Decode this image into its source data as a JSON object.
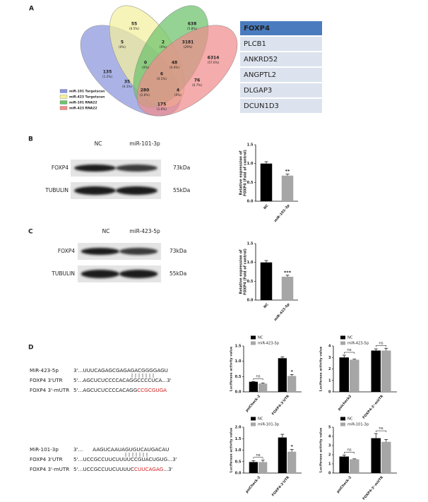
{
  "panel_labels": [
    "A",
    "B",
    "C",
    "D"
  ],
  "venn": {
    "sets": [
      {
        "name": "miR-101 Targetscan",
        "color": "#8a96dc"
      },
      {
        "name": "miR-423 Targetscan",
        "color": "#f3f09c"
      },
      {
        "name": "miR-101 RNA22",
        "color": "#6cc26c"
      },
      {
        "name": "miR-423 RNA22",
        "color": "#f08c8c"
      }
    ],
    "regions": [
      {
        "count": 135,
        "percent": "(1.2%)"
      },
      {
        "count": 55,
        "percent": "(0.5%)"
      },
      {
        "count": 638,
        "percent": "(5.8%)"
      },
      {
        "count": 6314,
        "percent": "(57.6%)"
      },
      {
        "count": 5,
        "percent": "(0%)"
      },
      {
        "count": 2,
        "percent": "(0%)"
      },
      {
        "count": 3181,
        "percent": "(29%)"
      },
      {
        "count": 0,
        "percent": "(0%)"
      },
      {
        "count": 48,
        "percent": "(0.4%)"
      },
      {
        "count": 35,
        "percent": "(0.3%)"
      },
      {
        "count": 6,
        "percent": "(0.1%)"
      },
      {
        "count": 76,
        "percent": "(0.7%)"
      },
      {
        "count": 280,
        "percent": "(2.6%)"
      },
      {
        "count": 4,
        "percent": "(0%)"
      },
      {
        "count": 175,
        "percent": "(1.6%)"
      }
    ]
  },
  "gene_table": {
    "header": "FOXP4",
    "rows": [
      "PLCB1",
      "ANKRD52",
      "ANGPTL2",
      "DLGAP3",
      "DCUN1D3"
    ]
  },
  "blots": [
    {
      "lanes": [
        "NC",
        "miR-101-3p"
      ],
      "rows": [
        {
          "name": "FOXP4",
          "size": "73kDa"
        },
        {
          "name": "TUBULIN",
          "size": "55kDa"
        }
      ]
    },
    {
      "lanes": [
        "NC",
        "miR-423-5p"
      ],
      "rows": [
        {
          "name": "FOXP4",
          "size": "73kDa"
        },
        {
          "name": "TUBULIN",
          "size": "55kDa"
        }
      ]
    }
  ],
  "sequences": [
    {
      "rows": [
        {
          "name": "MiR-423-5p",
          "parts": [
            {
              "text": "3'...UUUCAGAGCGAGAGACGGGGAGU"
            }
          ]
        },
        {
          "name": "FOXP4 3'UTR",
          "parts": [
            {
              "text": "5'...AGCUCUCCCCACAGGCCCCUCA...3'"
            }
          ]
        },
        {
          "name": "FOXP4 3'-mUTR",
          "parts": [
            {
              "text": "5'...AGCUCUCCCCACAGG"
            },
            {
              "text": "CCGCGUGA",
              "color": "#d62020"
            }
          ]
        }
      ]
    },
    {
      "rows": [
        {
          "name": "MiR-101-3p",
          "parts": [
            {
              "text": "3'...      AAGUCAAUAGUGUCAUGACAU"
            }
          ]
        },
        {
          "name": "FOXP4 3'UTR",
          "parts": [
            {
              "text": "5'...UCCGCCUUCUUUUCCGUACUGUG...3'"
            }
          ]
        },
        {
          "name": "FOXP4 3'-mUTR",
          "parts": [
            {
              "text": "5'...UCCGCCUUCUUUUC"
            },
            {
              "text": "CUUCAGAG",
              "color": "#d62020"
            },
            {
              "text": "...3'"
            }
          ]
        }
      ]
    }
  ],
  "chart_data": [
    {
      "type": "bar",
      "ylabel": [
        "Relative expression of",
        "FOXP4 (Fold of control)"
      ],
      "categories": [
        "NC",
        "miR-101-3p"
      ],
      "values": [
        1.0,
        0.68
      ],
      "errors": [
        0.05,
        0.04
      ],
      "colors": [
        "#000000",
        "#a6a6a6"
      ],
      "ylim": [
        0,
        1.5
      ],
      "yticks": [
        {
          "value": 0,
          "label": "0.0"
        },
        {
          "value": 0.5,
          "label": "0.5"
        },
        {
          "value": 1,
          "label": "1.0"
        },
        {
          "value": 1.5,
          "label": "1.5"
        }
      ],
      "annotations": [
        {
          "category": "miR-101-3p",
          "text": "**"
        }
      ]
    },
    {
      "type": "bar",
      "ylabel": [
        "Relative expression of",
        "FOXP4 (Fold of control)"
      ],
      "categories": [
        "NC",
        "miR-423-5p"
      ],
      "values": [
        1.0,
        0.62
      ],
      "errors": [
        0.05,
        0.04
      ],
      "colors": [
        "#000000",
        "#a6a6a6"
      ],
      "ylim": [
        0,
        1.5
      ],
      "yticks": [
        {
          "value": 0,
          "label": "0.0"
        },
        {
          "value": 0.5,
          "label": "0.5"
        },
        {
          "value": 1,
          "label": "1.0"
        },
        {
          "value": 1.5,
          "label": "1.5"
        }
      ],
      "annotations": [
        {
          "category": "miR-423-5p",
          "text": "***"
        }
      ]
    },
    {
      "type": "grouped_bar",
      "ylabel": "Luciferase activity value",
      "categories": [
        "psiCheck-2",
        "FOXP4-3'UTR"
      ],
      "series": [
        {
          "name": "NC",
          "color": "#000000",
          "values": [
            0.33,
            1.1
          ],
          "errors": [
            0.01,
            0.04
          ]
        },
        {
          "name": "miR-423-5p",
          "color": "#a6a6a6",
          "values": [
            0.27,
            0.52
          ],
          "errors": [
            0.02,
            0.05
          ]
        }
      ],
      "ylim": [
        0,
        1.5
      ],
      "yticks": [
        {
          "value": 0,
          "label": "0.0"
        },
        {
          "value": 0.5,
          "label": "0.5"
        },
        {
          "value": 1,
          "label": "1.0"
        },
        {
          "value": 1.5,
          "label": "1.5"
        }
      ],
      "annotations": [
        {
          "category": "psiCheck-2",
          "text": "ns"
        },
        {
          "category": "FOXP4-3'UTR",
          "text": "*"
        }
      ]
    },
    {
      "type": "grouped_bar",
      "ylabel": "Luciferase activity value",
      "categories": [
        "psicheck2",
        "FOXP4-3'-mUTR"
      ],
      "series": [
        {
          "name": "NC",
          "color": "#000000",
          "values": [
            3.0,
            3.6
          ],
          "errors": [
            0.2,
            0.15
          ]
        },
        {
          "name": "miR-423-5p",
          "color": "#a6a6a6",
          "values": [
            2.8,
            3.6
          ],
          "errors": [
            0.05,
            0.2
          ]
        }
      ],
      "ylim": [
        0,
        4
      ],
      "yticks": [
        0,
        1,
        2,
        3,
        4
      ],
      "annotations": [
        {
          "category": "psicheck2",
          "text": "ns"
        },
        {
          "category": "FOXP4-3'-mUTR",
          "text": "ns"
        }
      ]
    },
    {
      "type": "grouped_bar",
      "ylabel": "Luciferase activity value",
      "categories": [
        "psiCheck-2",
        "FOXP4-3'UTR"
      ],
      "series": [
        {
          "name": "NC",
          "color": "#000000",
          "values": [
            0.48,
            1.55
          ],
          "errors": [
            0.06,
            0.14
          ]
        },
        {
          "name": "miR-101-3p",
          "color": "#a6a6a6",
          "values": [
            0.48,
            0.93
          ],
          "errors": [
            0.08,
            0.1
          ]
        }
      ],
      "ylim": [
        0,
        2
      ],
      "yticks": [
        {
          "value": 0,
          "label": "0.0"
        },
        {
          "value": 0.5,
          "label": "0.5"
        },
        {
          "value": 1,
          "label": "1.0"
        },
        {
          "value": 1.5,
          "label": "1.5"
        },
        {
          "value": 2,
          "label": "2.0"
        }
      ],
      "annotations": [
        {
          "category": "psiCheck-2",
          "text": "ns"
        },
        {
          "category": "FOXP4-3'UTR",
          "text": "*"
        }
      ]
    },
    {
      "type": "grouped_bar",
      "ylabel": "Luciferase activity value",
      "categories": [
        "psiCheck-2",
        "FOXP4-3'-mUTR"
      ],
      "series": [
        {
          "name": "NC",
          "color": "#000000",
          "values": [
            1.8,
            3.8
          ],
          "errors": [
            0.15,
            0.5
          ]
        },
        {
          "name": "miR-101-3p",
          "color": "#a6a6a6",
          "values": [
            1.5,
            3.4
          ],
          "errors": [
            0.05,
            0.25
          ]
        }
      ],
      "ylim": [
        0,
        5
      ],
      "yticks": [
        0,
        1,
        2,
        3,
        4,
        5
      ],
      "annotations": [
        {
          "category": "psiCheck-2",
          "text": "ns"
        },
        {
          "category": "FOXP4-3'-mUTR",
          "text": "ns"
        }
      ]
    }
  ]
}
